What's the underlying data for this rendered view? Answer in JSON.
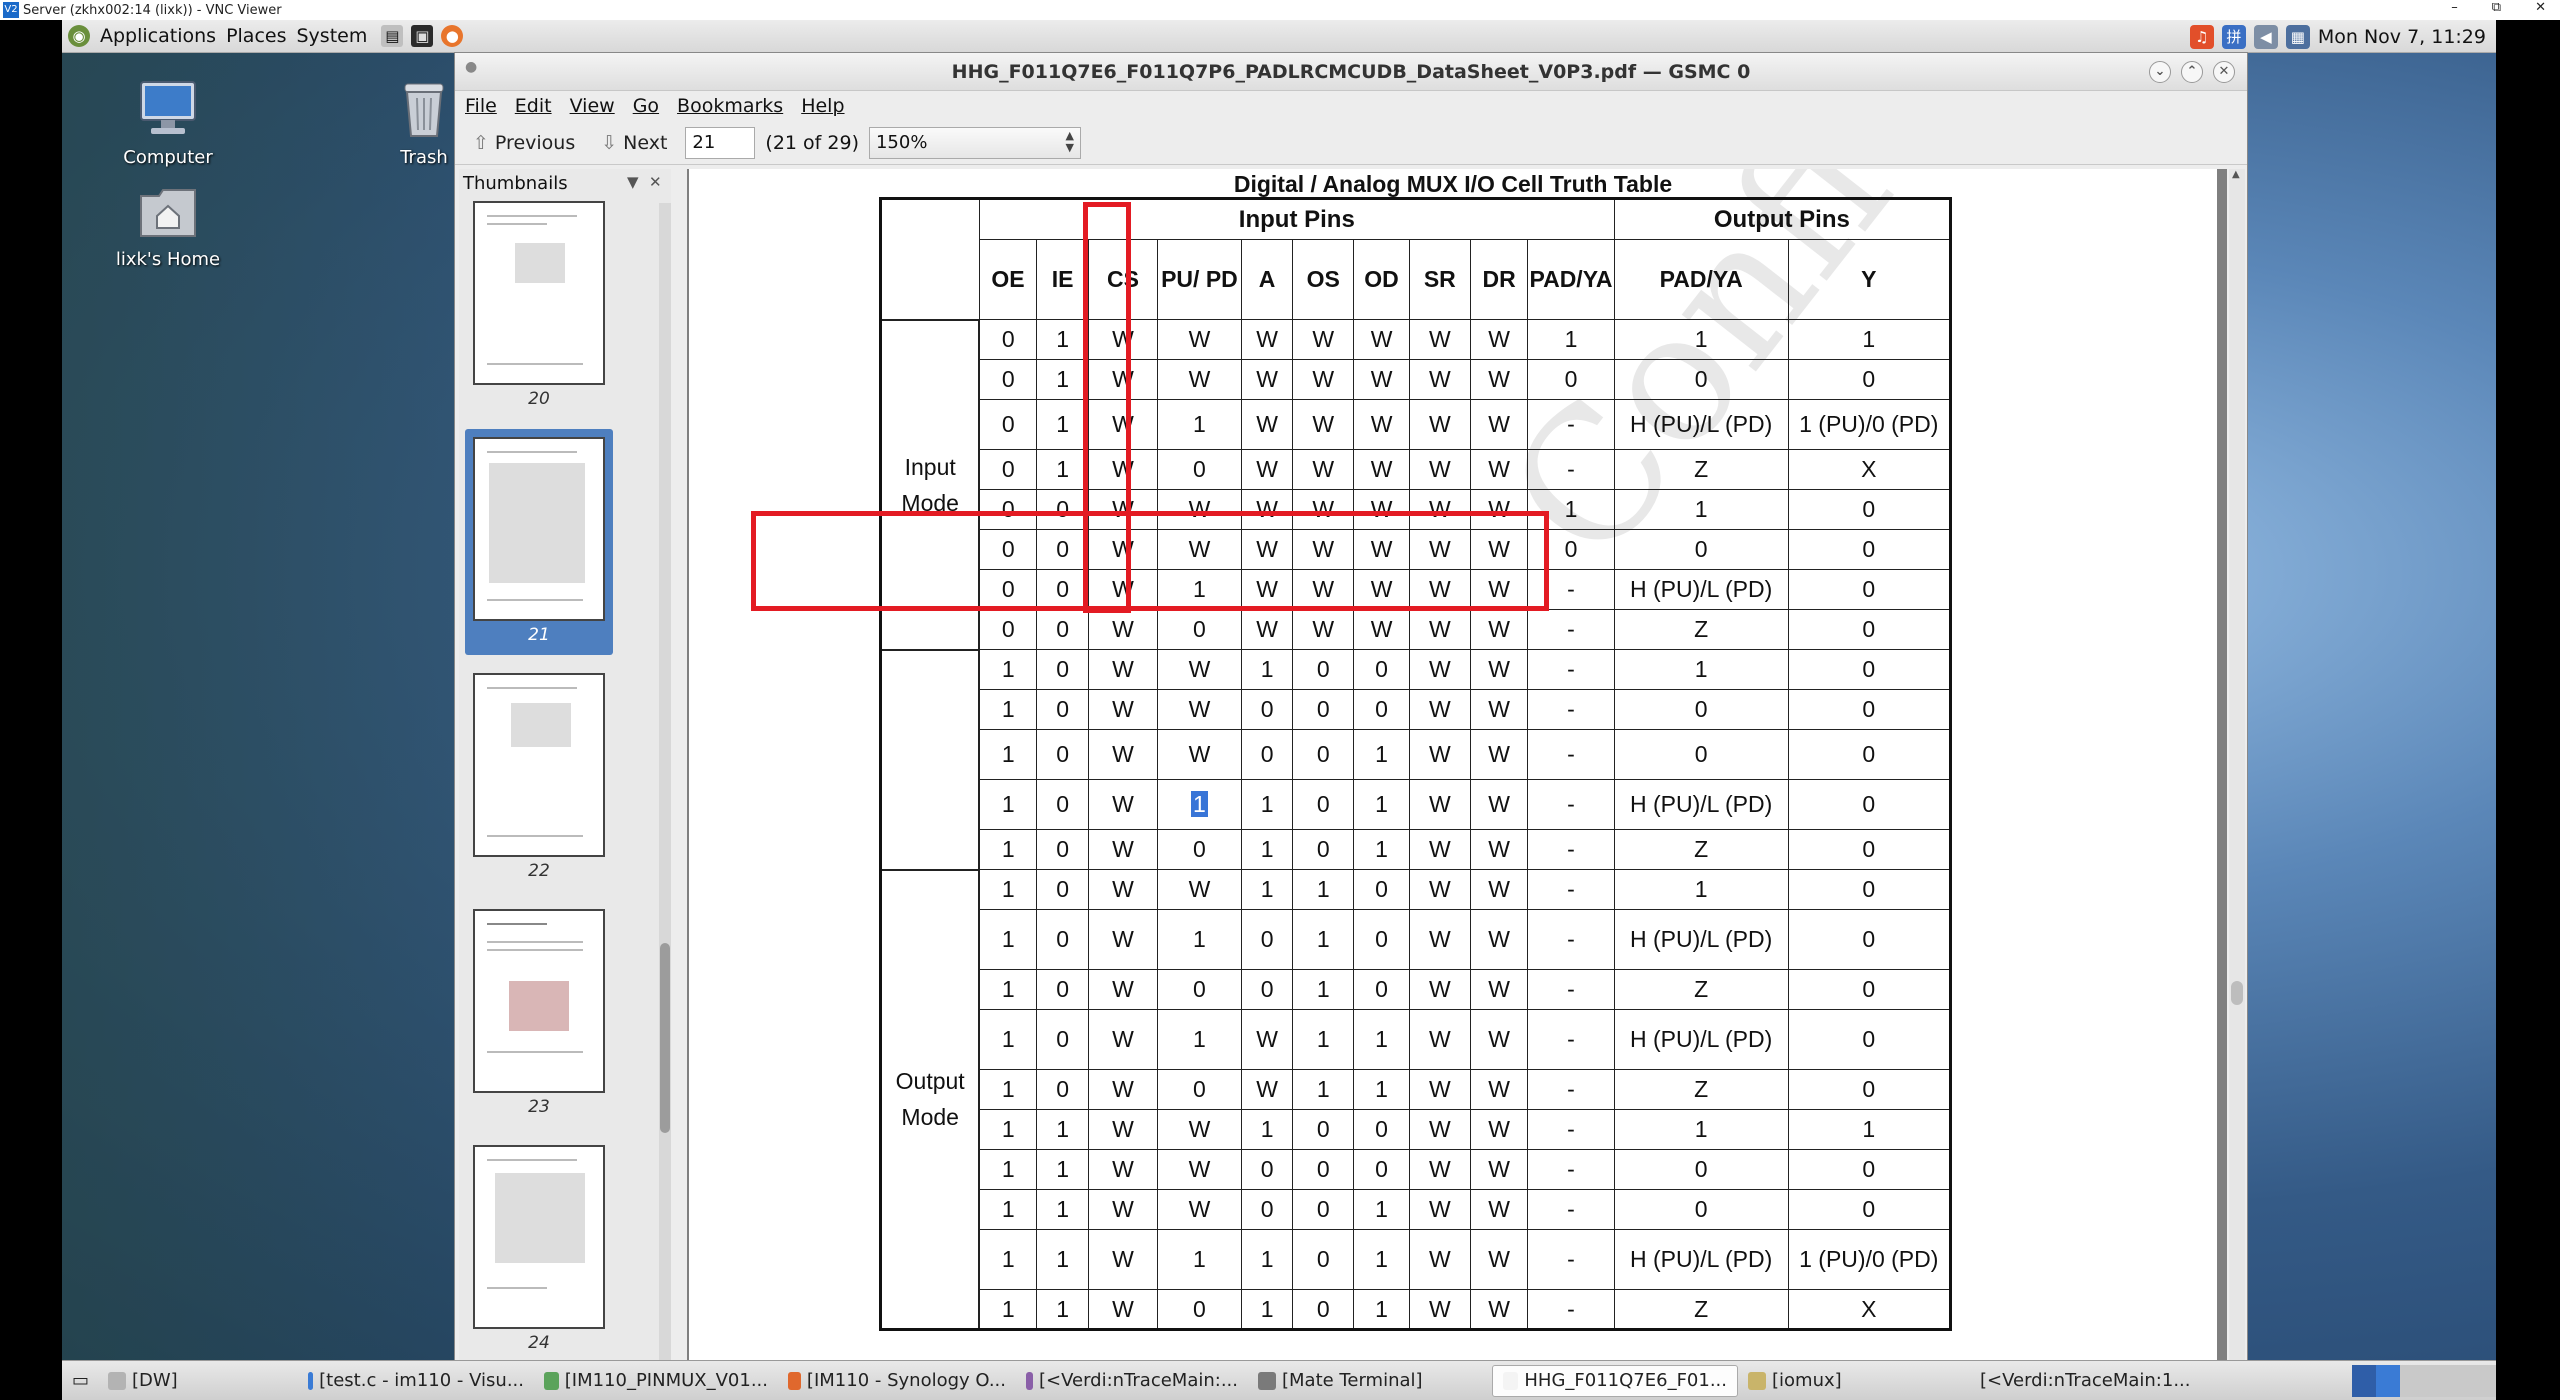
{
  "vnc": {
    "title": "Server (zkhx002:14 (lixk)) - VNC Viewer",
    "controls": [
      "–",
      "⧉",
      "✕"
    ]
  },
  "top_panel": {
    "menus": [
      "Applications",
      "Places",
      "System"
    ],
    "clock": "Mon Nov  7, 11:29"
  },
  "desktop_icons": [
    "Computer",
    "Trash",
    "lixk's Home"
  ],
  "window": {
    "title": "HHG_F011Q7E6_F011Q7P6_PADLRCMCUDB_DataSheet_V0P3.pdf — GSMC 0",
    "menu": [
      "File",
      "Edit",
      "View",
      "Go",
      "Bookmarks",
      "Help"
    ],
    "toolbar": {
      "previous": "Previous",
      "next": "Next",
      "page_value": "21",
      "page_count": "(21 of 29)",
      "zoom": "150%"
    },
    "sidebar": {
      "title": "Thumbnails",
      "pages": [
        "20",
        "21",
        "22",
        "23",
        "24"
      ],
      "selected_page": "21"
    }
  },
  "doc": {
    "heading": "Digital / Analog MUX I/O Cell Truth Table",
    "group_input": "Input Pins",
    "group_output": "Output Pins",
    "columns": [
      "OE",
      "IE",
      "CS",
      "PU/ PD",
      "A",
      "OS",
      "OD",
      "SR",
      "DR",
      "PAD/YA",
      "PAD/YA",
      "Y"
    ],
    "mode_input": [
      "Input",
      "Mode"
    ],
    "mode_output": [
      "Output",
      "Mode"
    ],
    "rows": [
      [
        "0",
        "1",
        "W",
        "W",
        "W",
        "W",
        "W",
        "W",
        "W",
        "1",
        "1",
        "1"
      ],
      [
        "0",
        "1",
        "W",
        "W",
        "W",
        "W",
        "W",
        "W",
        "W",
        "0",
        "0",
        "0"
      ],
      [
        "0",
        "1",
        "W",
        "1",
        "W",
        "W",
        "W",
        "W",
        "W",
        "-",
        "H (PU)/L (PD)",
        "1 (PU)/0 (PD)"
      ],
      [
        "0",
        "1",
        "W",
        "0",
        "W",
        "W",
        "W",
        "W",
        "W",
        "-",
        "Z",
        "X"
      ],
      [
        "0",
        "0",
        "W",
        "W",
        "W",
        "W",
        "W",
        "W",
        "W",
        "1",
        "1",
        "0"
      ],
      [
        "0",
        "0",
        "W",
        "W",
        "W",
        "W",
        "W",
        "W",
        "W",
        "0",
        "0",
        "0"
      ],
      [
        "0",
        "0",
        "W",
        "1",
        "W",
        "W",
        "W",
        "W",
        "W",
        "-",
        "H (PU)/L (PD)",
        "0"
      ],
      [
        "0",
        "0",
        "W",
        "0",
        "W",
        "W",
        "W",
        "W",
        "W",
        "-",
        "Z",
        "0"
      ],
      [
        "1",
        "0",
        "W",
        "W",
        "1",
        "0",
        "0",
        "W",
        "W",
        "-",
        "1",
        "0"
      ],
      [
        "1",
        "0",
        "W",
        "W",
        "0",
        "0",
        "0",
        "W",
        "W",
        "-",
        "0",
        "0"
      ],
      [
        "1",
        "0",
        "W",
        "W",
        "0",
        "0",
        "1",
        "W",
        "W",
        "-",
        "0",
        "0"
      ],
      [
        "1",
        "0",
        "W",
        "1",
        "1",
        "0",
        "1",
        "W",
        "W",
        "-",
        "H (PU)/L (PD)",
        "0"
      ],
      [
        "1",
        "0",
        "W",
        "0",
        "1",
        "0",
        "1",
        "W",
        "W",
        "-",
        "Z",
        "0"
      ],
      [
        "1",
        "0",
        "W",
        "W",
        "1",
        "1",
        "0",
        "W",
        "W",
        "-",
        "1",
        "0"
      ],
      [
        "1",
        "0",
        "W",
        "1",
        "0",
        "1",
        "0",
        "W",
        "W",
        "-",
        "H (PU)/L (PD)",
        "0"
      ],
      [
        "1",
        "0",
        "W",
        "0",
        "0",
        "1",
        "0",
        "W",
        "W",
        "-",
        "Z",
        "0"
      ],
      [
        "1",
        "0",
        "W",
        "1",
        "W",
        "1",
        "1",
        "W",
        "W",
        "-",
        "H (PU)/L (PD)",
        "0"
      ],
      [
        "1",
        "0",
        "W",
        "0",
        "W",
        "1",
        "1",
        "W",
        "W",
        "-",
        "Z",
        "0"
      ],
      [
        "1",
        "1",
        "W",
        "W",
        "1",
        "0",
        "0",
        "W",
        "W",
        "-",
        "1",
        "1"
      ],
      [
        "1",
        "1",
        "W",
        "W",
        "0",
        "0",
        "0",
        "W",
        "W",
        "-",
        "0",
        "0"
      ],
      [
        "1",
        "1",
        "W",
        "W",
        "0",
        "0",
        "1",
        "W",
        "W",
        "-",
        "0",
        "0"
      ],
      [
        "1",
        "1",
        "W",
        "1",
        "1",
        "0",
        "1",
        "W",
        "W",
        "-",
        "H (PU)/L (PD)",
        "1 (PU)/0 (PD)"
      ],
      [
        "1",
        "1",
        "W",
        "0",
        "1",
        "0",
        "1",
        "W",
        "W",
        "-",
        "Z",
        "X"
      ]
    ],
    "highlighted_cell": {
      "row": 11,
      "col": 3
    },
    "annotation_color": "#e31b23",
    "selection_color": "#3875d7"
  },
  "taskbar": [
    {
      "label": "[DW]",
      "active": false
    },
    {
      "label": "[test.c - im110 - Visu...",
      "active": false
    },
    {
      "label": "[IM110_PINMUX_V01...",
      "active": false
    },
    {
      "label": "[IM110 - Synology O...",
      "active": false
    },
    {
      "label": "[<Verdi:nTraceMain:...",
      "active": false
    },
    {
      "label": "[Mate Terminal]",
      "active": false
    },
    {
      "label": "HHG_F011Q7E6_F01...",
      "active": true
    },
    {
      "label": "[iomux]",
      "active": false
    },
    {
      "label": "[<Verdi:nTraceMain:1...",
      "active": false
    }
  ]
}
